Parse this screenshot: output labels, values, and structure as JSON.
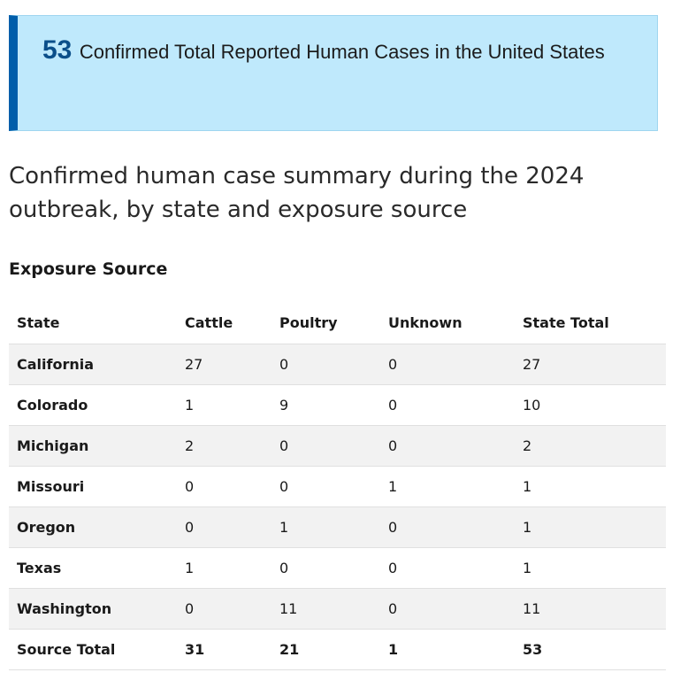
{
  "callout": {
    "number": "53",
    "text": "Confirmed Total Reported Human Cases in the United States"
  },
  "summary_heading": "Confirmed human case summary during the 2024 outbreak, by state and exposure source",
  "table": {
    "caption": "Exposure Source",
    "headers": [
      "State",
      "Cattle",
      "Poultry",
      "Unknown",
      "State Total"
    ],
    "rows": [
      {
        "state": "California",
        "cattle": "27",
        "poultry": "0",
        "unknown": "0",
        "total": "27"
      },
      {
        "state": "Colorado",
        "cattle": "1",
        "poultry": "9",
        "unknown": "0",
        "total": "10"
      },
      {
        "state": "Michigan",
        "cattle": "2",
        "poultry": "0",
        "unknown": "0",
        "total": "2"
      },
      {
        "state": "Missouri",
        "cattle": "0",
        "poultry": "0",
        "unknown": "1",
        "total": "1"
      },
      {
        "state": "Oregon",
        "cattle": "0",
        "poultry": "1",
        "unknown": "0",
        "total": "1"
      },
      {
        "state": "Texas",
        "cattle": "1",
        "poultry": "0",
        "unknown": "0",
        "total": "1"
      },
      {
        "state": "Washington",
        "cattle": "0",
        "poultry": "11",
        "unknown": "0",
        "total": "11"
      }
    ],
    "totals": {
      "label": "Source Total",
      "cattle": "31",
      "poultry": "21",
      "unknown": "1",
      "total": "53"
    }
  },
  "colors": {
    "callout_bg": "#bfe9fc",
    "callout_accent": "#005eaa",
    "number_color": "#0b4f8a",
    "row_shade": "#f2f2f2"
  }
}
